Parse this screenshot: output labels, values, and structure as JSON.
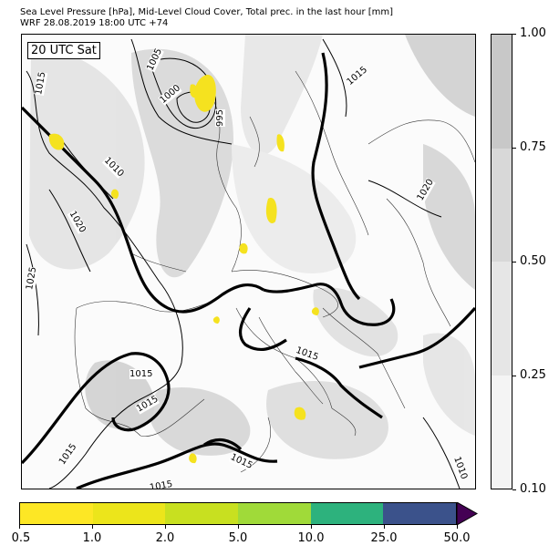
{
  "header": {
    "line1": "Sea Level Pressure [hPa], Mid-Level Cloud Cover, Total prec. in the last hour [mm]",
    "line2": "WRF 28.08.2019 18:00 UTC +74"
  },
  "map": {
    "time_label": "20 UTC Sat",
    "isobar_labels": [
      "1015",
      "1005",
      "1000",
      "995",
      "1015",
      "1010",
      "1020",
      "1020",
      "1025",
      "1015",
      "1015",
      "1015",
      "1015",
      "1015",
      "1015",
      "1010"
    ]
  },
  "cloud_colorbar": {
    "levels": [
      0.1,
      0.25,
      0.5,
      0.75,
      1.0
    ],
    "labels": [
      "1.00",
      "0.75",
      "0.50",
      "0.25",
      "0.10"
    ],
    "colors": [
      "#f4f4f4",
      "#e6e6e6",
      "#d8d8d8",
      "#c8c8c8"
    ]
  },
  "precip_colorbar": {
    "labels": [
      "0.5",
      "1.0",
      "2.0",
      "5.0",
      "10.0",
      "25.0",
      "50.0"
    ],
    "colors": [
      "#fde725",
      "#ece51b",
      "#c8e020",
      "#a0da39",
      "#2db27d",
      "#3b528b",
      "#440154"
    ]
  }
}
